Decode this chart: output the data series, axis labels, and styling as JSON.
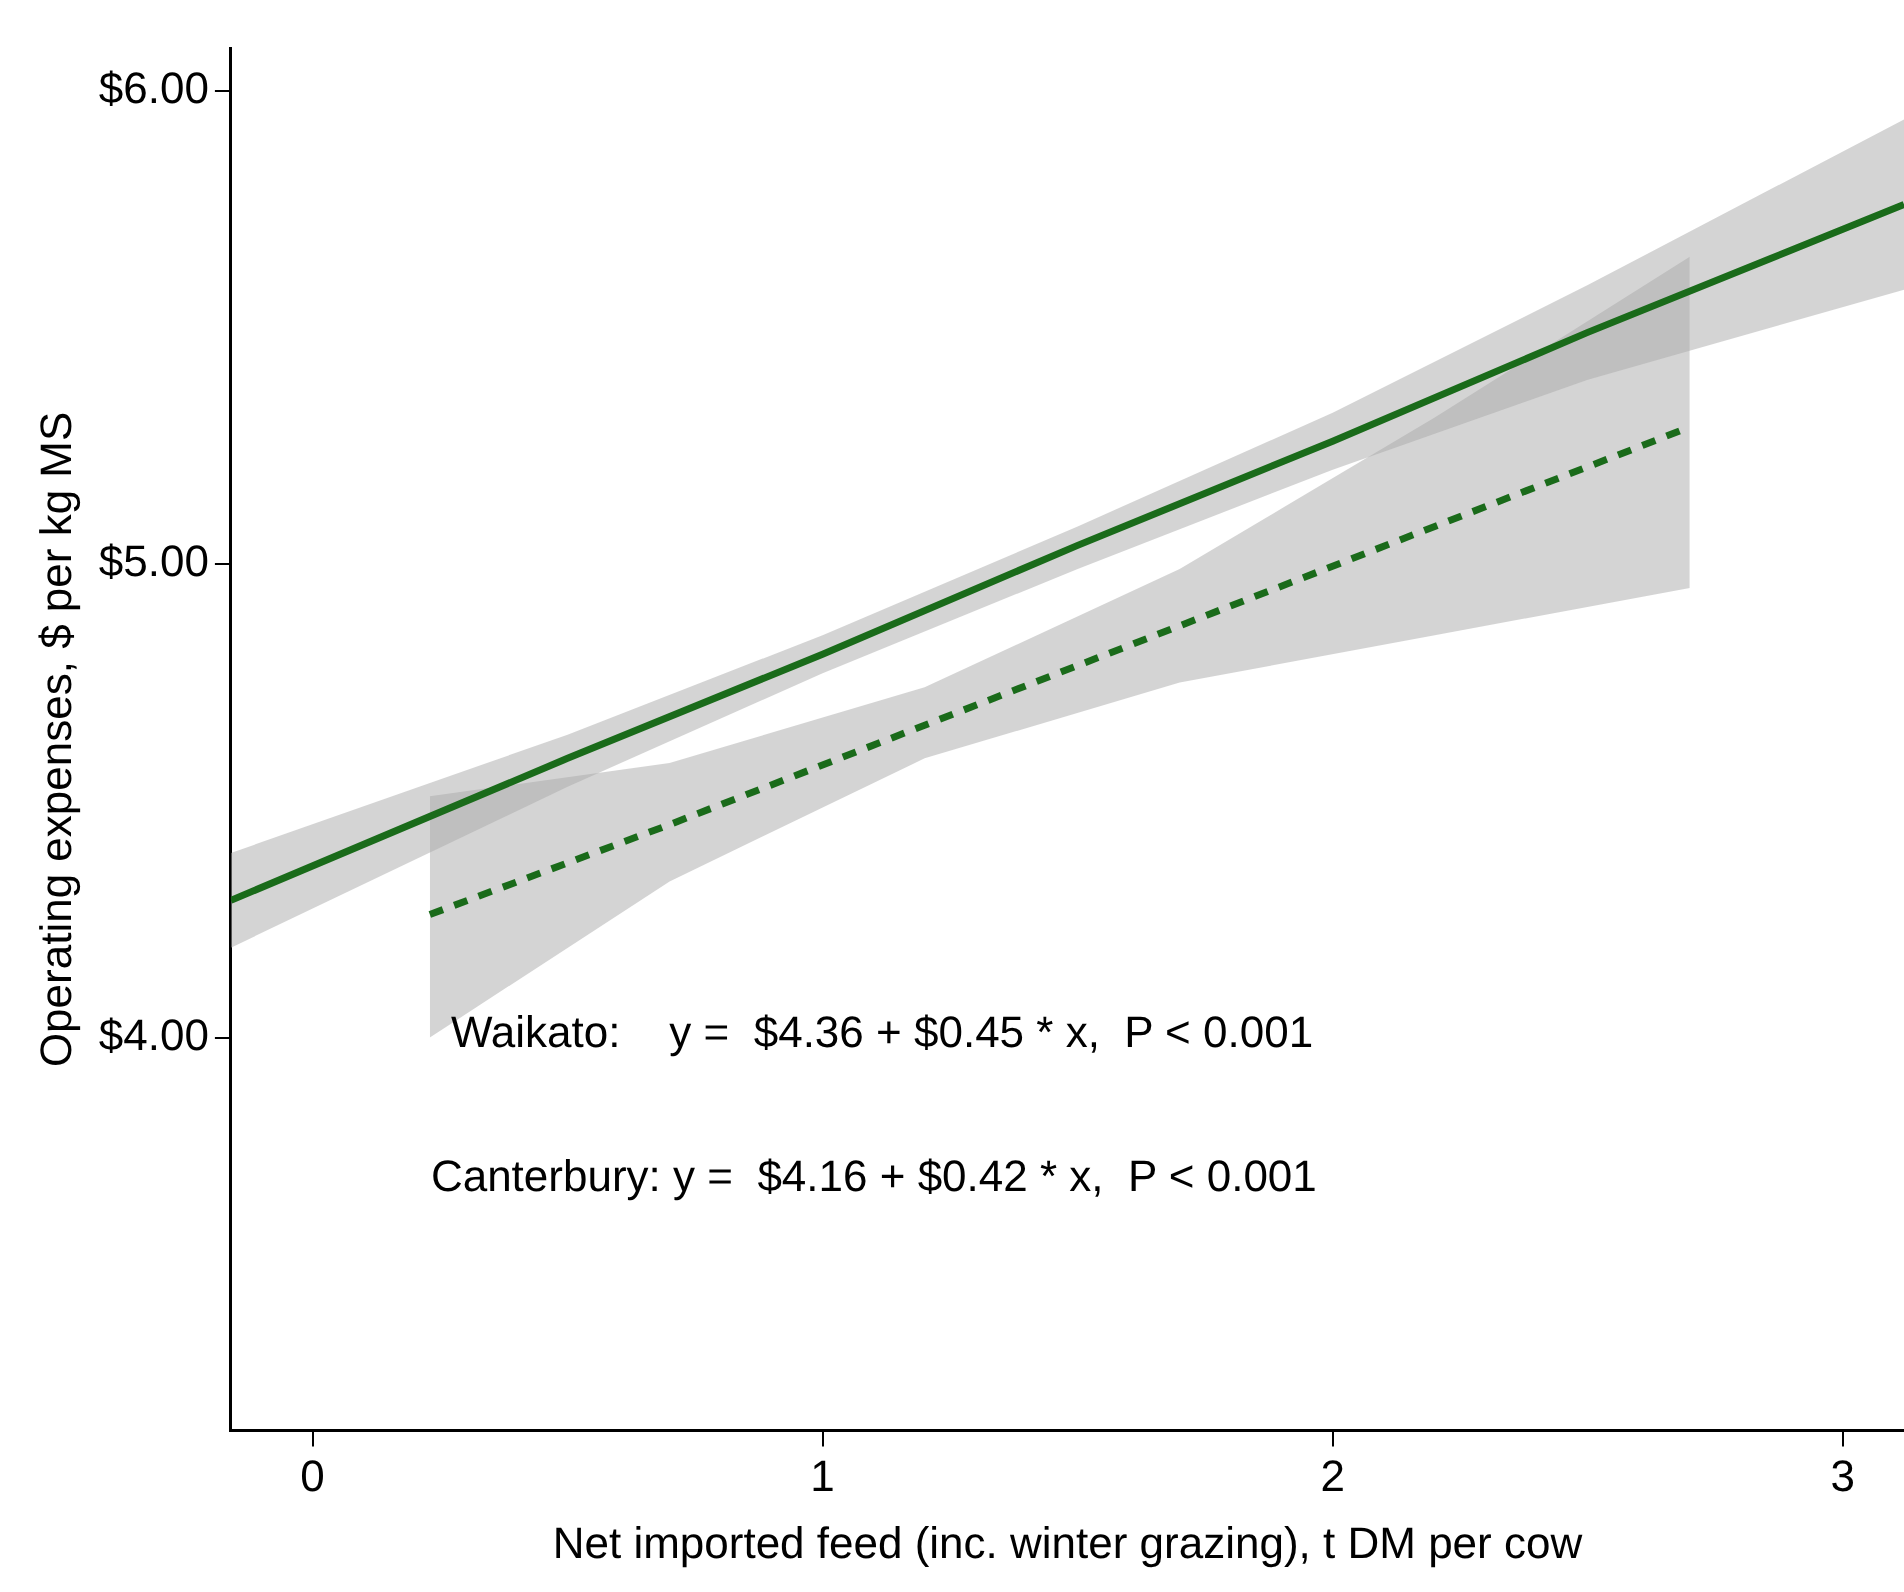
{
  "chart_data": {
    "type": "line",
    "xlabel": "Net imported feed (inc. winter grazing), t DM per cow",
    "ylabel": "Operating expenses, $ per kg MS",
    "xlim": [
      -0.16,
      3.12
    ],
    "xticks": [
      0,
      1,
      2,
      3
    ],
    "ylim": [
      3.17,
      6.09
    ],
    "yticks": [
      {
        "value": 4,
        "label": "$4.00"
      },
      {
        "value": 5,
        "label": "$5.00"
      },
      {
        "value": 6,
        "label": "$6.00"
      }
    ],
    "grid": false,
    "legend": false,
    "marker": "none",
    "series": [
      {
        "color": "#1a6b1a",
        "line_style": "solid",
        "x": [
          -0.16,
          0.5,
          1,
          1.5,
          2,
          2.5,
          3.12
        ],
        "values": [
          4.29,
          4.59,
          4.81,
          5.04,
          5.26,
          5.49,
          5.76
        ],
        "lower": [
          4.19,
          4.53,
          4.77,
          4.99,
          5.2,
          5.39,
          5.58
        ],
        "upper": [
          4.39,
          4.64,
          4.85,
          5.08,
          5.32,
          5.59,
          5.94
        ]
      },
      {
        "color": "#1a6b1a",
        "line_style": "dashed",
        "x": [
          0.23,
          0.7,
          1.2,
          1.7,
          2.2,
          2.7
        ],
        "values": [
          4.26,
          4.45,
          4.66,
          4.87,
          5.08,
          5.29
        ],
        "lower": [
          4.0,
          4.33,
          4.59,
          4.75,
          4.85,
          4.95
        ],
        "upper": [
          4.51,
          4.58,
          4.74,
          4.99,
          5.31,
          5.65
        ]
      }
    ],
    "annotations": [
      "Waikato:    y =  $4.36 + $0.45 * x,  P < 0.001",
      "Canterbury: y =  $4.16 + $0.42 * x,  P < 0.001"
    ]
  }
}
